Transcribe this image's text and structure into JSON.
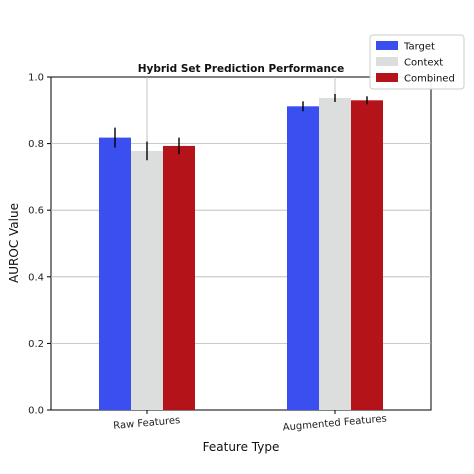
{
  "chart_data": {
    "type": "bar",
    "title": "Hybrid Set Prediction Performance",
    "xlabel": "Feature Type",
    "ylabel": "AUROC Value",
    "ylim": [
      0,
      1.0
    ],
    "yticks": [
      "0.0",
      "0.2",
      "0.4",
      "0.6",
      "0.8",
      "1.0"
    ],
    "grid": "horizontal",
    "legend_position": "top-right",
    "categories": [
      "Raw Features",
      "Augmented Features"
    ],
    "series": [
      {
        "name": "Target",
        "color": "#3b4ef0",
        "values": [
          0.818,
          0.912
        ],
        "errors": [
          0.03,
          0.015
        ]
      },
      {
        "name": "Context",
        "color": "#dcdedd",
        "values": [
          0.778,
          0.937
        ],
        "errors": [
          0.028,
          0.012
        ]
      },
      {
        "name": "Combined",
        "color": "#b5131a",
        "values": [
          0.793,
          0.93
        ],
        "errors": [
          0.025,
          0.012
        ]
      }
    ]
  }
}
